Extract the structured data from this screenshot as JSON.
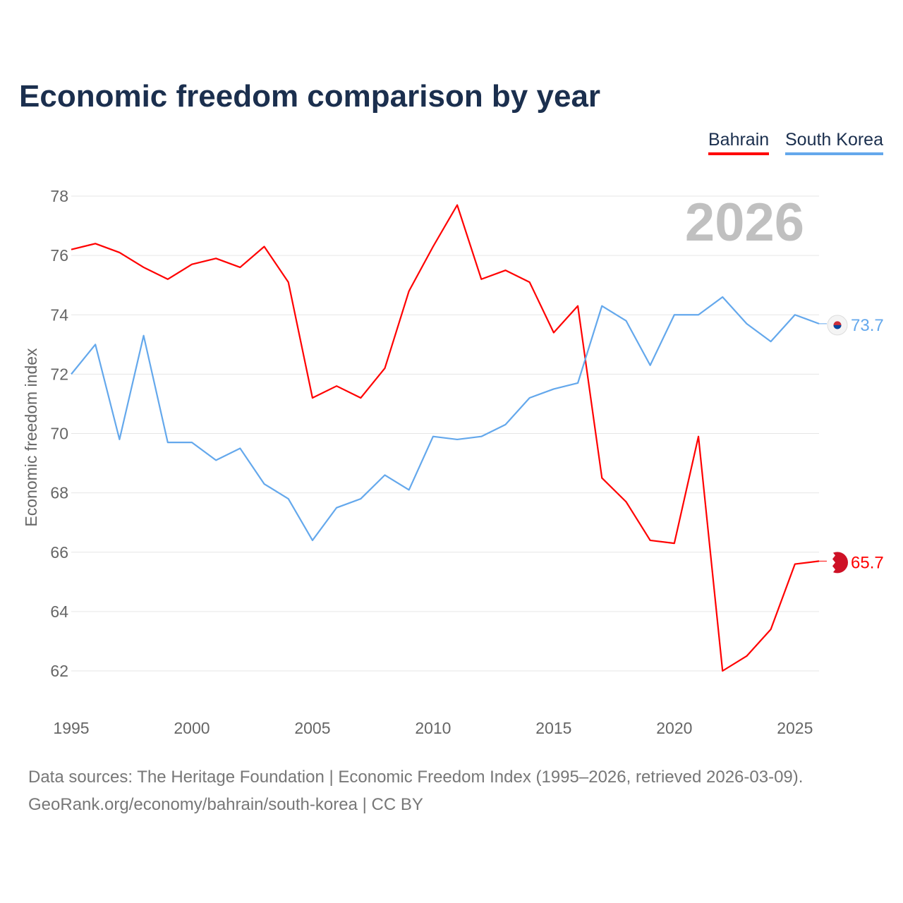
{
  "chart_data": {
    "type": "line",
    "title": "Economic freedom comparison by year",
    "xlabel": "",
    "ylabel": "Economic freedom index",
    "xlim": [
      1995,
      2026
    ],
    "ylim": [
      62,
      78
    ],
    "yticks": [
      62,
      64,
      66,
      68,
      70,
      72,
      74,
      76,
      78
    ],
    "xticks": [
      1995,
      2000,
      2005,
      2010,
      2015,
      2020,
      2025
    ],
    "grid": true,
    "legend_position": "top-right",
    "year_label": "2026",
    "x": [
      1995,
      1996,
      1997,
      1998,
      1999,
      2000,
      2001,
      2002,
      2003,
      2004,
      2005,
      2006,
      2007,
      2008,
      2009,
      2010,
      2011,
      2012,
      2013,
      2014,
      2015,
      2016,
      2017,
      2018,
      2019,
      2020,
      2021,
      2022,
      2023,
      2024,
      2025,
      2026
    ],
    "series": [
      {
        "name": "Bahrain",
        "color": "#ff0000",
        "end_label": "65.7",
        "values": [
          76.2,
          76.4,
          76.1,
          75.6,
          75.2,
          75.7,
          75.9,
          75.6,
          76.3,
          75.1,
          71.2,
          71.6,
          71.2,
          72.2,
          74.8,
          76.3,
          77.7,
          75.2,
          75.5,
          75.1,
          73.4,
          74.3,
          68.5,
          67.7,
          66.4,
          66.3,
          69.9,
          62.0,
          62.5,
          63.4,
          65.6,
          65.7
        ]
      },
      {
        "name": "South Korea",
        "color": "#64a8ec",
        "end_label": "73.7",
        "values": [
          72.0,
          73.0,
          69.8,
          73.3,
          69.7,
          69.7,
          69.1,
          69.5,
          68.3,
          67.8,
          66.4,
          67.5,
          67.8,
          68.6,
          68.1,
          69.9,
          69.8,
          69.9,
          70.3,
          71.2,
          71.5,
          71.7,
          74.3,
          73.8,
          72.3,
          74.0,
          74.0,
          74.6,
          73.7,
          73.1,
          74.0,
          73.7
        ]
      }
    ]
  },
  "footer": {
    "line1": "Data sources: The Heritage Foundation | Economic Freedom Index (1995–2026, retrieved 2026-03-09).",
    "line2": "GeoRank.org/economy/bahrain/south-korea | CC BY"
  }
}
